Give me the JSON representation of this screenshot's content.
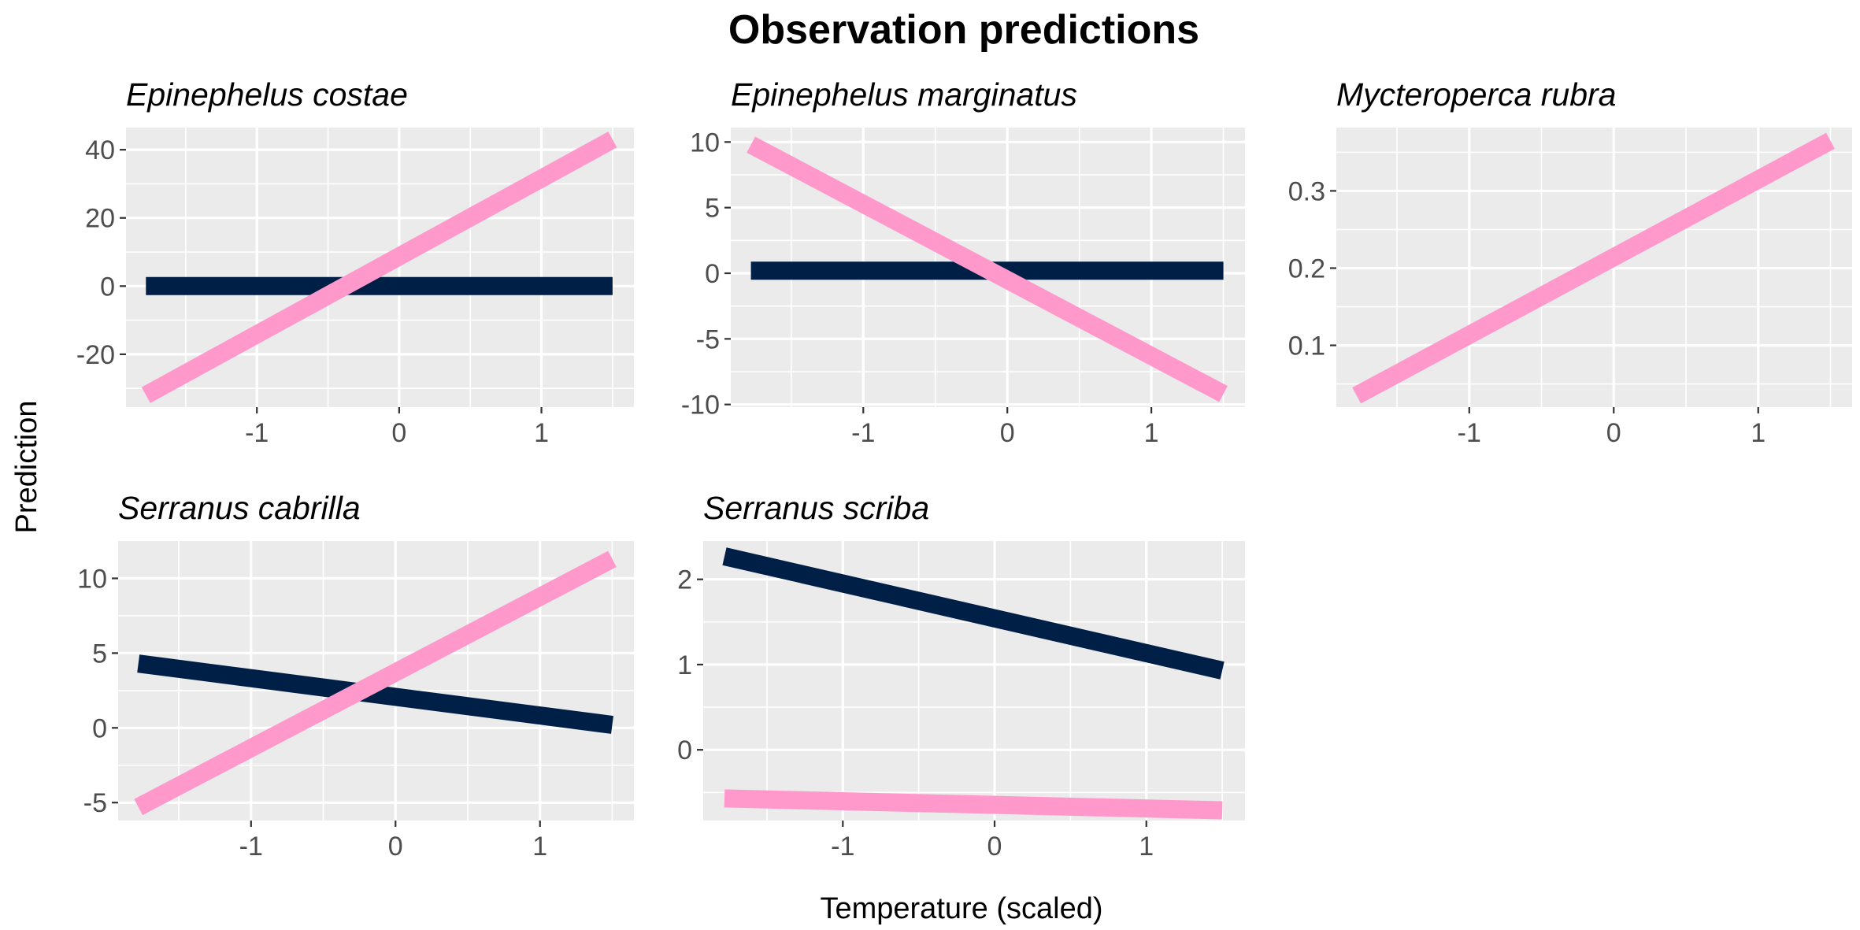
{
  "chart_data": {
    "type": "line",
    "title": "Observation predictions",
    "xlabel": "Temperature (scaled)",
    "ylabel": "Prediction",
    "grid": true,
    "colors": {
      "navy": "#001f47",
      "pink": "#ff99cc",
      "panel": "#ebebeb",
      "grid": "#ffffff"
    },
    "facets": [
      {
        "title": "Epinephelus costae",
        "x_ticks": [
          "-1",
          "0",
          "1"
        ],
        "x_tick_values": [
          -1,
          0,
          1
        ],
        "y_ticks": [
          "-20",
          "0",
          "20",
          "40"
        ],
        "y_tick_values": [
          -20,
          0,
          20,
          40
        ],
        "xlim": [
          -1.92,
          1.65
        ],
        "ylim": [
          -35.5,
          46.5
        ],
        "series": [
          {
            "color": "#001f47",
            "x": [
              -1.78,
              1.5
            ],
            "y": [
              0,
              0
            ]
          },
          {
            "color": "#ff99cc",
            "x": [
              -1.78,
              1.5
            ],
            "y": [
              -32,
              43
            ]
          }
        ]
      },
      {
        "title": "Epinephelus marginatus",
        "x_ticks": [
          "-1",
          "0",
          "1"
        ],
        "x_tick_values": [
          -1,
          0,
          1
        ],
        "y_ticks": [
          "-10",
          "-5",
          "0",
          "5",
          "10"
        ],
        "y_tick_values": [
          -10,
          -5,
          0,
          5,
          10
        ],
        "xlim": [
          -1.92,
          1.65
        ],
        "ylim": [
          -10.2,
          11.1
        ],
        "series": [
          {
            "color": "#001f47",
            "x": [
              -1.78,
              1.5
            ],
            "y": [
              0.2,
              0.2
            ]
          },
          {
            "color": "#ff99cc",
            "x": [
              -1.78,
              1.5
            ],
            "y": [
              9.8,
              -9.2
            ]
          }
        ]
      },
      {
        "title": "Mycteroperca rubra",
        "x_ticks": [
          "-1",
          "0",
          "1"
        ],
        "x_tick_values": [
          -1,
          0,
          1
        ],
        "y_ticks": [
          "0.1",
          "0.2",
          "0.3"
        ],
        "y_tick_values": [
          0.1,
          0.2,
          0.3
        ],
        "xlim": [
          -1.92,
          1.65
        ],
        "ylim": [
          0.02,
          0.382
        ],
        "series": [
          {
            "color": "#ff99cc",
            "x": [
              -1.78,
              1.5
            ],
            "y": [
              0.035,
              0.365
            ]
          }
        ]
      },
      {
        "title": "Serranus cabrilla",
        "x_ticks": [
          "-1",
          "0",
          "1"
        ],
        "x_tick_values": [
          -1,
          0,
          1
        ],
        "y_ticks": [
          "-5",
          "0",
          "5",
          "10"
        ],
        "y_tick_values": [
          -5,
          0,
          5,
          10
        ],
        "xlim": [
          -1.92,
          1.65
        ],
        "ylim": [
          -6.2,
          12.5
        ],
        "series": [
          {
            "color": "#001f47",
            "x": [
              -1.78,
              1.5
            ],
            "y": [
              4.3,
              0.2
            ]
          },
          {
            "color": "#ff99cc",
            "x": [
              -1.78,
              1.5
            ],
            "y": [
              -5.3,
              11.3
            ]
          }
        ]
      },
      {
        "title": "Serranus scriba",
        "x_ticks": [
          "-1",
          "0",
          "1"
        ],
        "x_tick_values": [
          -1,
          0,
          1
        ],
        "y_ticks": [
          "0",
          "1",
          "2"
        ],
        "y_tick_values": [
          0,
          1,
          2
        ],
        "xlim": [
          -1.92,
          1.65
        ],
        "ylim": [
          -0.83,
          2.45
        ],
        "series": [
          {
            "color": "#001f47",
            "x": [
              -1.78,
              1.5
            ],
            "y": [
              2.27,
              0.93
            ]
          },
          {
            "color": "#ff99cc",
            "x": [
              -1.78,
              1.5
            ],
            "y": [
              -0.57,
              -0.71
            ]
          }
        ]
      }
    ]
  }
}
